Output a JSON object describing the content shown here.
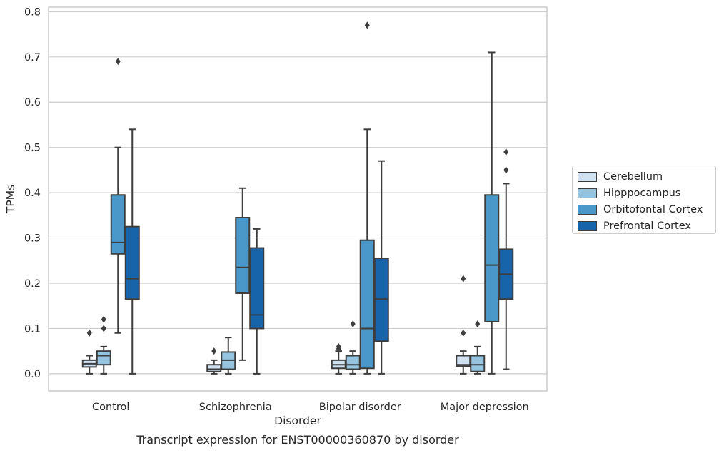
{
  "chart_data": {
    "type": "boxplot",
    "caption": "Transcript expression for ENST00000360870 by disorder",
    "xlabel": "Disorder",
    "ylabel": "TPMs",
    "ylim": [
      -0.038,
      0.81
    ],
    "yticks": [
      "0.0",
      "0.1",
      "0.2",
      "0.3",
      "0.4",
      "0.5",
      "0.6",
      "0.7",
      "0.8"
    ],
    "grid": "horizontal",
    "legend_position": "right",
    "categories": [
      "Control",
      "Schizophrenia",
      "Bipolar disorder",
      "Major depression"
    ],
    "series": [
      {
        "name": "Cerebellum",
        "color": "#d0e1f2",
        "boxes": [
          {
            "whislo": 0.0,
            "q1": 0.015,
            "med": 0.022,
            "q3": 0.03,
            "whishi": 0.04,
            "fliers": [
              0.09
            ]
          },
          {
            "whislo": 0.0,
            "q1": 0.005,
            "med": 0.01,
            "q3": 0.02,
            "whishi": 0.03,
            "fliers": [
              0.05
            ]
          },
          {
            "whislo": 0.0,
            "q1": 0.012,
            "med": 0.02,
            "q3": 0.03,
            "whishi": 0.05,
            "fliers": [
              0.055,
              0.06
            ]
          },
          {
            "whislo": 0.0,
            "q1": 0.017,
            "med": 0.02,
            "q3": 0.04,
            "whishi": 0.05,
            "fliers": [
              0.09,
              0.21
            ]
          }
        ]
      },
      {
        "name": "Hipppocampus",
        "color": "#94c4df",
        "boxes": [
          {
            "whislo": 0.0,
            "q1": 0.02,
            "med": 0.04,
            "q3": 0.05,
            "whishi": 0.06,
            "fliers": [
              0.1,
              0.12
            ]
          },
          {
            "whislo": 0.0,
            "q1": 0.01,
            "med": 0.03,
            "q3": 0.048,
            "whishi": 0.08,
            "fliers": []
          },
          {
            "whislo": 0.0,
            "q1": 0.01,
            "med": 0.02,
            "q3": 0.04,
            "whishi": 0.05,
            "fliers": [
              0.11
            ]
          },
          {
            "whislo": 0.0,
            "q1": 0.005,
            "med": 0.02,
            "q3": 0.04,
            "whishi": 0.06,
            "fliers": [
              0.11
            ]
          }
        ]
      },
      {
        "name": "Orbitofontal Cortex",
        "color": "#4a98c9",
        "boxes": [
          {
            "whislo": 0.09,
            "q1": 0.265,
            "med": 0.29,
            "q3": 0.395,
            "whishi": 0.5,
            "fliers": [
              0.69
            ]
          },
          {
            "whislo": 0.03,
            "q1": 0.178,
            "med": 0.235,
            "q3": 0.345,
            "whishi": 0.41,
            "fliers": []
          },
          {
            "whislo": 0.0,
            "q1": 0.012,
            "med": 0.1,
            "q3": 0.295,
            "whishi": 0.54,
            "fliers": [
              0.77
            ]
          },
          {
            "whislo": 0.0,
            "q1": 0.115,
            "med": 0.24,
            "q3": 0.395,
            "whishi": 0.71,
            "fliers": []
          }
        ]
      },
      {
        "name": "Prefrontal Cortex",
        "color": "#1764ab",
        "boxes": [
          {
            "whislo": 0.0,
            "q1": 0.165,
            "med": 0.21,
            "q3": 0.325,
            "whishi": 0.54,
            "fliers": []
          },
          {
            "whislo": 0.0,
            "q1": 0.1,
            "med": 0.13,
            "q3": 0.278,
            "whishi": 0.32,
            "fliers": []
          },
          {
            "whislo": 0.0,
            "q1": 0.072,
            "med": 0.165,
            "q3": 0.255,
            "whishi": 0.47,
            "fliers": []
          },
          {
            "whislo": 0.01,
            "q1": 0.165,
            "med": 0.22,
            "q3": 0.275,
            "whishi": 0.42,
            "fliers": [
              0.45,
              0.49
            ]
          }
        ]
      }
    ]
  }
}
